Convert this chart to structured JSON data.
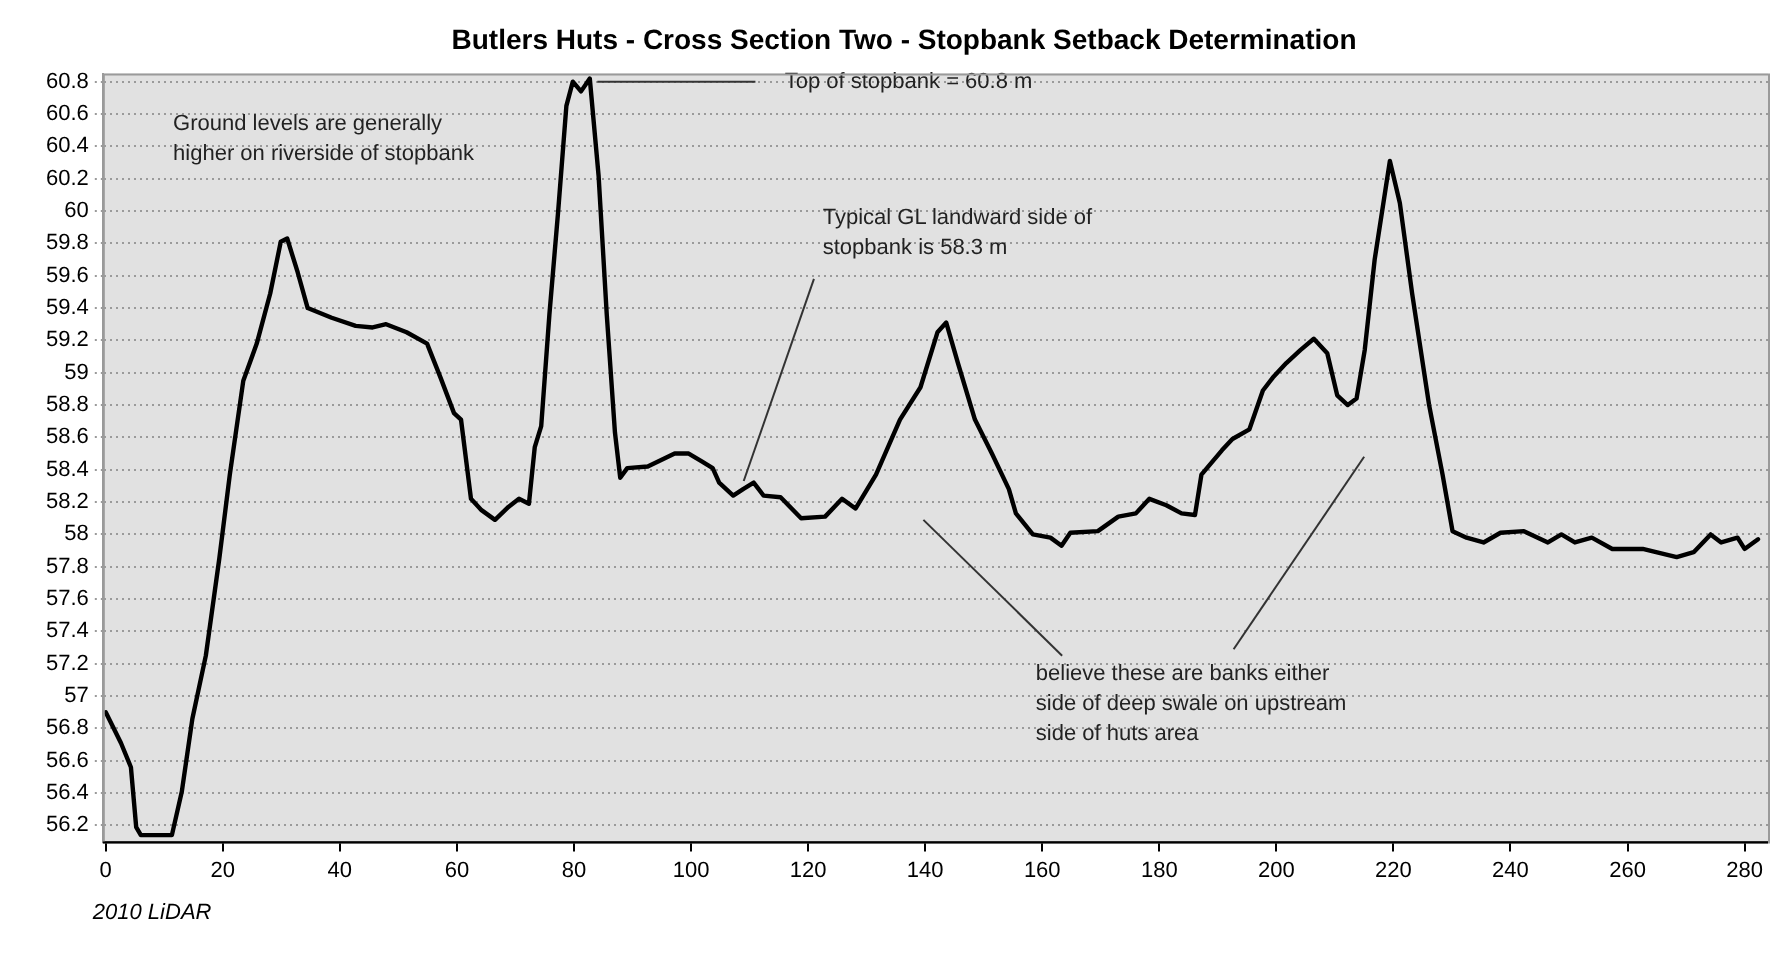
{
  "chart_data": {
    "type": "line",
    "title": "Butlers Huts - Cross Section Two - Stopbank Setback Determination",
    "x": [
      0,
      2.6,
      4.3,
      5.2,
      6,
      11.3,
      13,
      14.8,
      17.1,
      19.4,
      21.2,
      23.5,
      25.8,
      28.1,
      29.9,
      31,
      32.8,
      34.5,
      38.6,
      42.7,
      45.6,
      47.9,
      51.4,
      54.9,
      57.2,
      59.5,
      60.7,
      62.4,
      64.2,
      66.5,
      68.8,
      70.6,
      72.3,
      73.3,
      74.4,
      75.8,
      77.3,
      78.7,
      79.8,
      81.2,
      82.7,
      84.2,
      85.6,
      87,
      87.9,
      89.1,
      92.6,
      97.2,
      99.6,
      101.9,
      103.7,
      104.8,
      107.2,
      108.9,
      110.7,
      112.4,
      115.3,
      118.8,
      122.9,
      125.8,
      128.1,
      131.6,
      135.7,
      139.2,
      142.1,
      143.6,
      145.6,
      148.5,
      151.4,
      154.3,
      155.5,
      158.4,
      161.4,
      163.3,
      164.8,
      169.5,
      173,
      176,
      178.3,
      181.2,
      183.8,
      186.1,
      187.2,
      190.7,
      192.5,
      195.4,
      197.7,
      199.4,
      201.7,
      204.1,
      206.4,
      208.7,
      210.4,
      212.2,
      213.7,
      215.1,
      216.8,
      219.4,
      221.1,
      223.2,
      226.1,
      228.4,
      230.1,
      232.5,
      235.4,
      238.3,
      242.3,
      246.4,
      248.7,
      251,
      253.9,
      257.4,
      262.6,
      268.4,
      271.3,
      274.2,
      276,
      278.8,
      280,
      282.3
    ],
    "series": [
      {
        "color": "#000000",
        "values": [
          56.9,
          56.71,
          56.56,
          56.19,
          56.14,
          56.14,
          56.41,
          56.86,
          57.25,
          57.85,
          58.37,
          58.95,
          59.18,
          59.49,
          59.81,
          59.83,
          59.62,
          59.4,
          59.34,
          59.29,
          59.28,
          59.3,
          59.25,
          59.18,
          58.97,
          58.75,
          58.71,
          58.22,
          58.15,
          58.09,
          58.17,
          58.22,
          58.19,
          58.54,
          58.67,
          59.36,
          60.0,
          60.65,
          60.8,
          60.74,
          60.82,
          60.22,
          59.36,
          58.63,
          58.35,
          58.41,
          58.42,
          58.5,
          58.5,
          58.45,
          58.41,
          58.32,
          58.24,
          58.28,
          58.32,
          58.24,
          58.23,
          58.1,
          58.11,
          58.22,
          58.16,
          58.37,
          58.71,
          58.91,
          59.25,
          59.31,
          59.06,
          58.71,
          58.5,
          58.28,
          58.13,
          58.0,
          57.98,
          57.93,
          58.01,
          58.02,
          58.11,
          58.13,
          58.22,
          58.18,
          58.13,
          58.12,
          58.37,
          58.52,
          58.59,
          58.65,
          58.89,
          58.97,
          59.06,
          59.14,
          59.21,
          59.12,
          58.86,
          58.8,
          58.84,
          59.14,
          59.7,
          60.31,
          60.05,
          59.49,
          58.8,
          58.37,
          58.02,
          57.98,
          57.95,
          58.01,
          58.02,
          57.95,
          58.0,
          57.95,
          57.98,
          57.91,
          57.91,
          57.86,
          57.89,
          58.0,
          57.95,
          57.98,
          57.91,
          57.97
        ]
      }
    ],
    "xlim": [
      -0.5,
      284
    ],
    "xticks": [
      0,
      20,
      40,
      60,
      80,
      100,
      120,
      140,
      160,
      180,
      200,
      220,
      240,
      260,
      280
    ],
    "ylim": [
      56.1,
      60.85
    ],
    "yticks": [
      56.2,
      56.4,
      56.6,
      56.8,
      57,
      57.2,
      57.4,
      57.6,
      57.8,
      58,
      58.2,
      58.4,
      58.6,
      58.8,
      59,
      59.2,
      59.4,
      59.6,
      59.8,
      60,
      60.2,
      60.4,
      60.6,
      60.8
    ],
    "grid": "y",
    "legend": false,
    "marker": "none",
    "line_style": "solid",
    "annotations": [
      "Ground levels are generally\nhigher on riverside of stopbank",
      "Top of stopbank = 60.8 m",
      {
        "text": "Typical GL landward side of\nstopbank is 58.3 m",
        "x": 109,
        "y": 58.33
      },
      "believe these are banks either\nside of deep swale on upstream\nside of huts area",
      "2010 LiDAR"
    ]
  }
}
